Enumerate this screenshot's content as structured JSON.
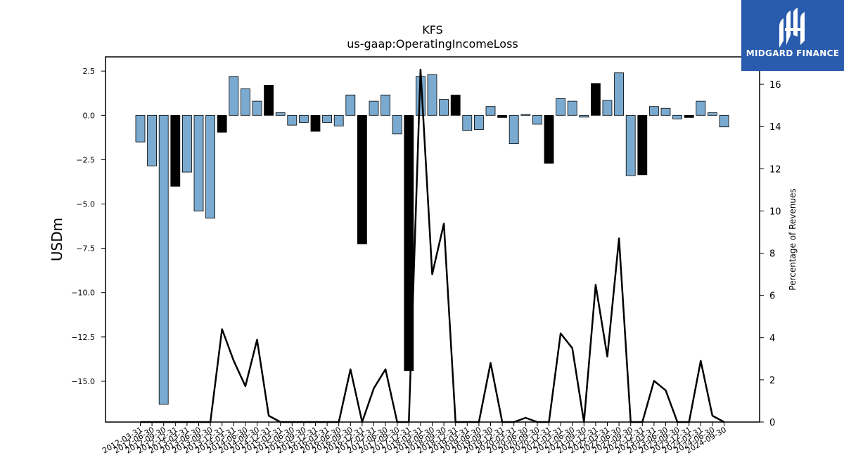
{
  "chart_data": {
    "type": "bar",
    "title": "KFS",
    "subtitle": "us-gaap:OperatingIncomeLoss",
    "ylabel": "USDm",
    "y2label": "Percentage of Revenues",
    "ylim": [
      -17.3,
      3.3
    ],
    "y2lim": [
      0,
      17.3
    ],
    "yticks": [
      "2.5",
      "0.0",
      "−2.5",
      "−5.0",
      "−7.5",
      "−10.0",
      "−12.5",
      "−15.0"
    ],
    "y2ticks": [
      "0",
      "2",
      "4",
      "6",
      "8",
      "10",
      "12",
      "14",
      "16"
    ],
    "colors": {
      "bar": "#7aaad0",
      "highlight": "#000000",
      "line": "#000000"
    },
    "categories": [
      "2012-03-31",
      "2012-06-30",
      "2012-09-30",
      "2012-12-31",
      "2013-03-31",
      "2013-06-30",
      "2013-09-30",
      "2013-12-31",
      "2014-03-31",
      "2014-06-30",
      "2014-09-30",
      "2014-12-31",
      "2015-03-31",
      "2015-06-30",
      "2015-09-30",
      "2015-12-31",
      "2016-03-31",
      "2016-06-30",
      "2016-09-30",
      "2016-12-31",
      "2017-03-31",
      "2017-06-30",
      "2017-09-30",
      "2017-12-31",
      "2018-03-31",
      "2018-06-30",
      "2018-09-30",
      "2018-12-31",
      "2019-03-31",
      "2019-06-30",
      "2019-09-30",
      "2019-12-31",
      "2020-03-31",
      "2020-06-30",
      "2020-09-30",
      "2020-12-31",
      "2021-03-31",
      "2021-06-30",
      "2021-09-30",
      "2021-12-31",
      "2022-03-31",
      "2022-06-30",
      "2022-09-30",
      "2022-12-31",
      "2023-03-31",
      "2023-06-30",
      "2023-09-30",
      "2023-12-31",
      "2024-03-31",
      "2024-06-30",
      "2024-09-30"
    ],
    "series": [
      {
        "type": "bar",
        "values": [
          -1.5,
          -2.85,
          -16.3,
          -4.0,
          -3.2,
          -5.4,
          -5.8,
          -0.95,
          2.2,
          1.5,
          0.8,
          1.7,
          0.15,
          -0.55,
          -0.4,
          -0.9,
          -0.4,
          -0.6,
          1.15,
          -7.25,
          0.8,
          1.15,
          -1.05,
          -14.4,
          2.2,
          2.3,
          0.9,
          1.15,
          -0.85,
          -0.8,
          0.5,
          -0.12,
          -1.6,
          0.05,
          -0.5,
          -2.7,
          0.95,
          0.8,
          -0.1,
          1.8,
          0.85,
          2.4,
          -3.4,
          -3.35,
          0.5,
          0.4,
          -0.2,
          -0.12,
          0.8,
          0.15,
          -0.65
        ],
        "highlight": [
          false,
          false,
          false,
          true,
          false,
          false,
          false,
          true,
          false,
          false,
          false,
          true,
          false,
          false,
          false,
          true,
          false,
          false,
          false,
          true,
          false,
          false,
          false,
          true,
          false,
          false,
          false,
          true,
          false,
          false,
          false,
          true,
          false,
          false,
          false,
          true,
          false,
          false,
          false,
          true,
          false,
          false,
          false,
          true,
          false,
          false,
          false,
          true,
          false,
          false,
          false
        ]
      },
      {
        "type": "line",
        "axis": "right",
        "values": [
          0,
          0,
          0,
          0,
          0,
          0,
          0,
          4.4,
          2.9,
          1.7,
          3.9,
          0.3,
          0,
          0,
          0,
          0,
          0,
          0,
          2.5,
          0,
          1.6,
          2.5,
          0,
          0,
          16.7,
          7.0,
          9.4,
          0,
          0,
          0,
          2.8,
          0,
          0,
          0.2,
          0,
          0,
          4.2,
          3.5,
          0,
          6.5,
          3.1,
          8.7,
          0,
          0,
          1.95,
          1.5,
          0,
          0,
          2.9,
          0.3,
          0
        ]
      }
    ]
  },
  "branding": {
    "name": "MIDGARD FINANCE",
    "icon": "midgard-logo-icon"
  }
}
